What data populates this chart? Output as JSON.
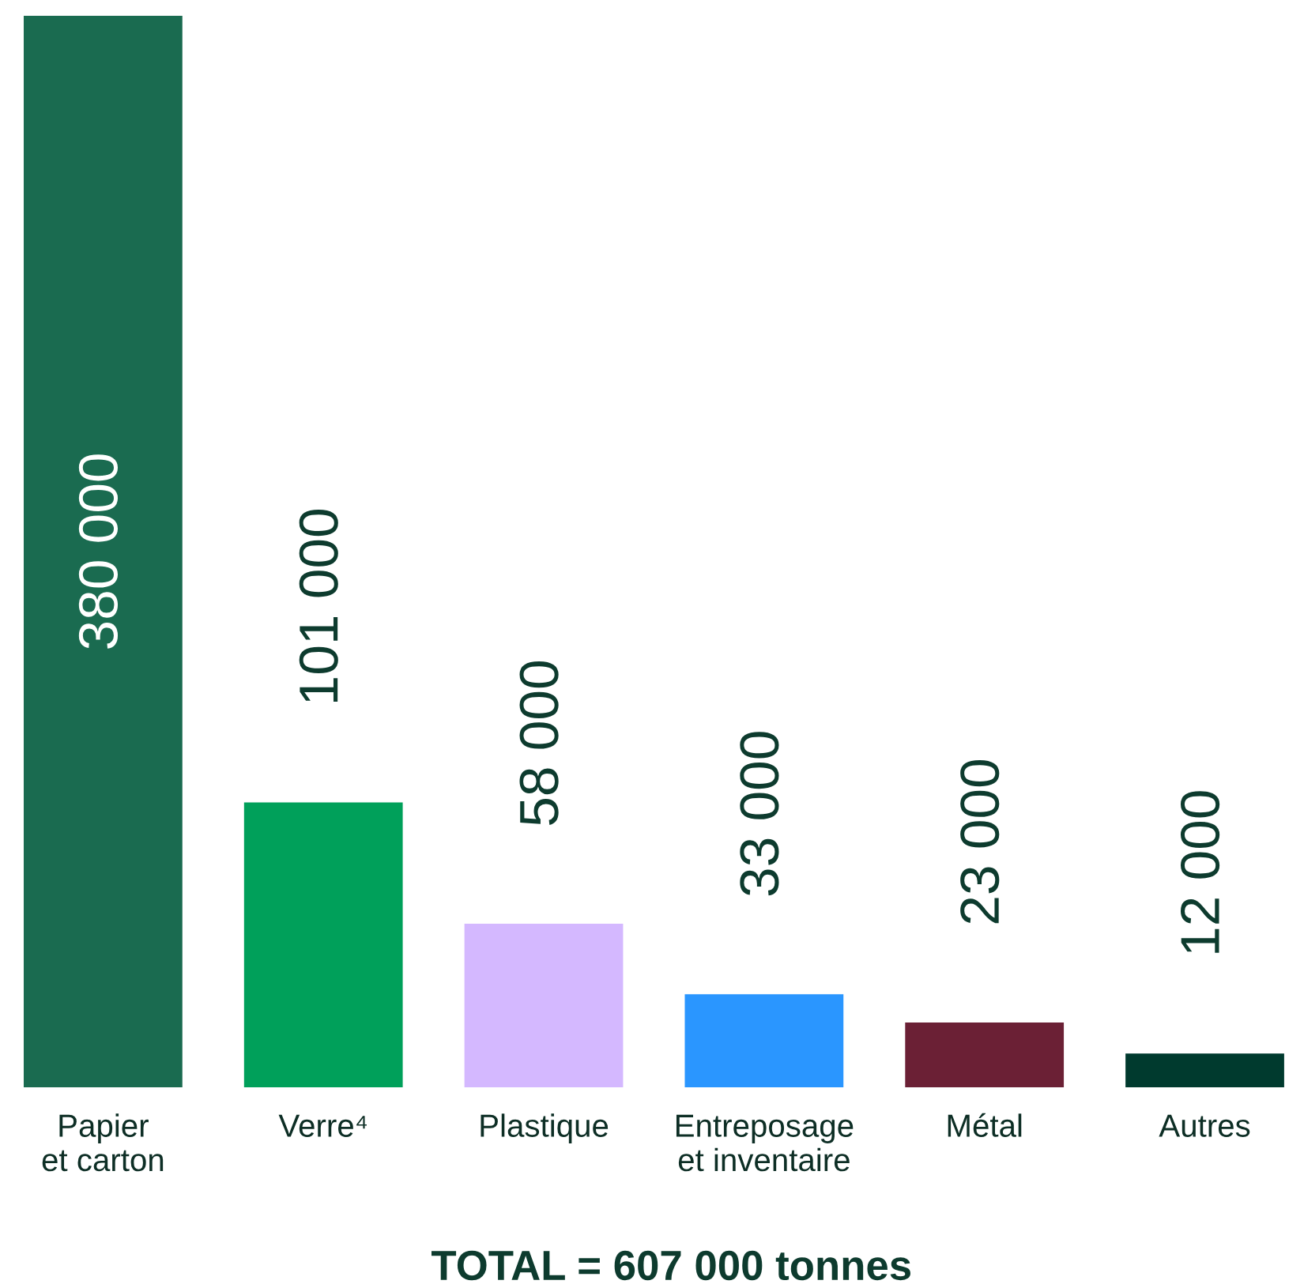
{
  "chart_data": {
    "type": "bar",
    "categories": [
      "Papier\net carton",
      "Verre⁴",
      "Plastique",
      "Entreposage\net inventaire",
      "Métal",
      "Autres"
    ],
    "values": [
      380000,
      101000,
      58000,
      33000,
      23000,
      12000
    ],
    "colors": [
      "#1a6b50",
      "#00a05a",
      "#d4b8ff",
      "#2a96ff",
      "#6b2035",
      "#003a2e"
    ],
    "value_labels": [
      "380 000",
      "101 000",
      "58 000",
      "33 000",
      "23 000",
      "12 000"
    ],
    "annotations": [
      "TOTAL = 607 000 tonnes"
    ],
    "grid": false,
    "legend": false
  }
}
